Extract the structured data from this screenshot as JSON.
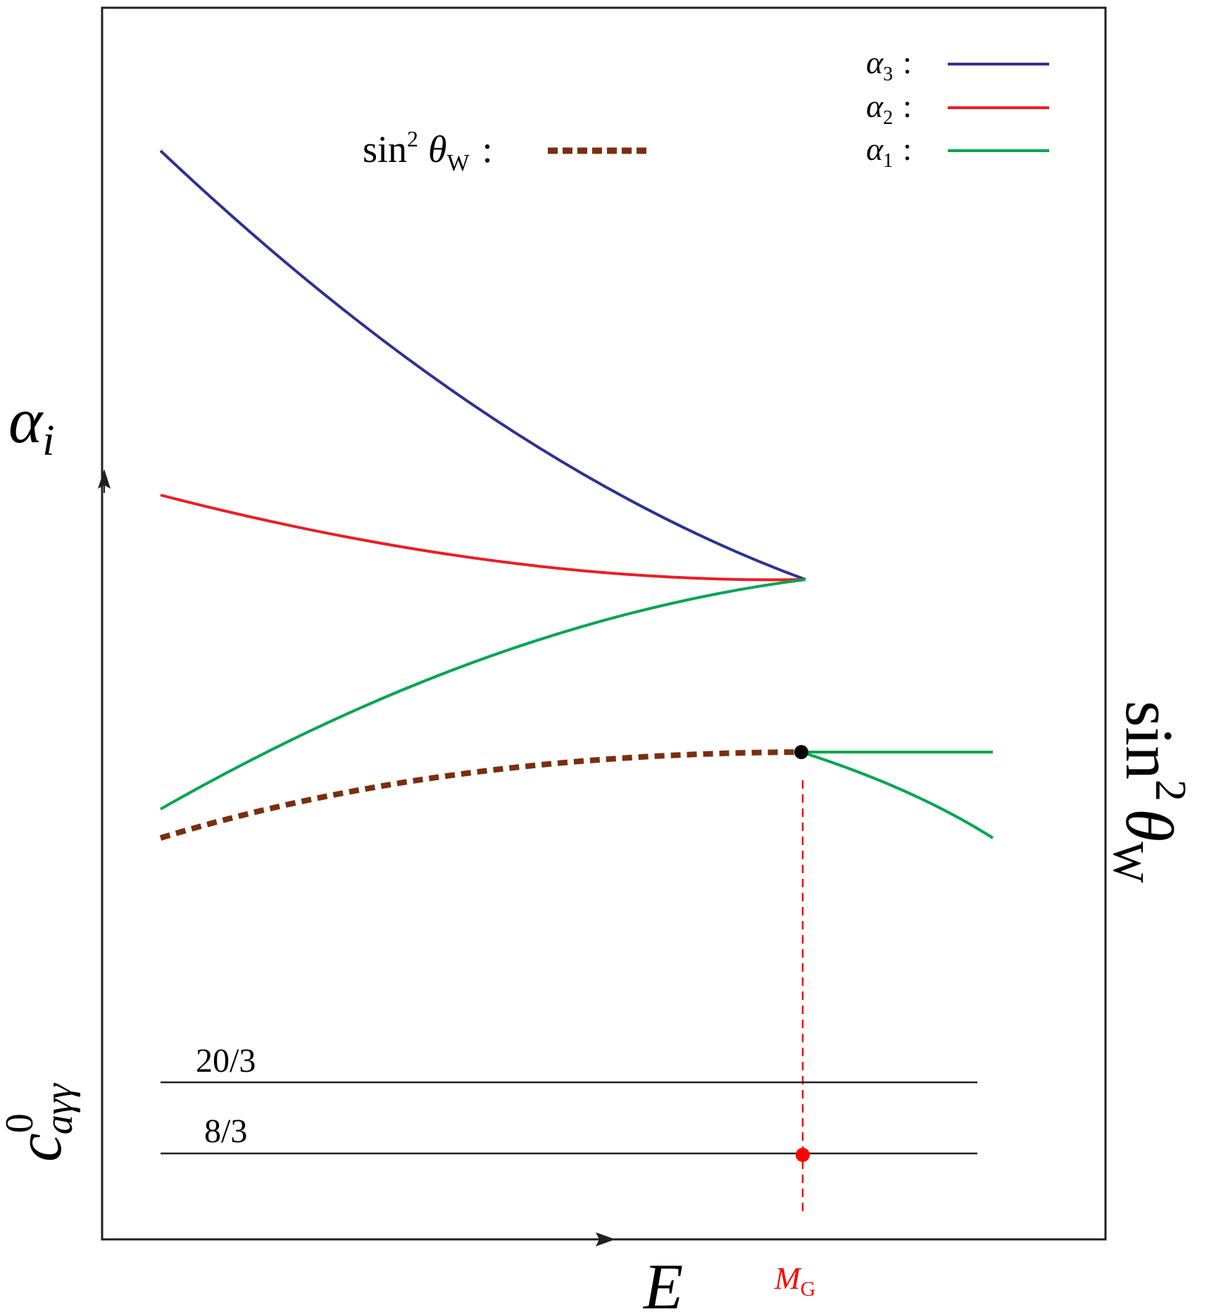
{
  "axes": {
    "y_label_greek": "α",
    "y_label_sub": "i",
    "x_label": "E",
    "right_label_fn": "sin",
    "right_label_exp": "2",
    "right_label_greek": "θ",
    "right_label_sub": "W",
    "lower_label_c": "c",
    "lower_label_sup": "0",
    "lower_label_sub": "aγγ"
  },
  "legend": {
    "alpha3": {
      "greek": "α",
      "sub": "3",
      "sep": ":",
      "color": "#2e3192"
    },
    "alpha2": {
      "greek": "α",
      "sub": "2",
      "sep": ":",
      "color": "#ed1c24"
    },
    "alpha1": {
      "greek": "α",
      "sub": "1",
      "sep": ":",
      "color": "#00a651"
    },
    "sin2": {
      "fn": "sin",
      "exp": "2",
      "greek": "θ",
      "sub": "W",
      "sep": ":",
      "color": "#7a2e0e"
    }
  },
  "levels": {
    "upper": "20/3",
    "lower": "8/3"
  },
  "unification": {
    "label": "M",
    "label_sub": "G",
    "color": "#ff0000"
  },
  "colors": {
    "frame": "#231f20",
    "point": "#000000"
  }
}
